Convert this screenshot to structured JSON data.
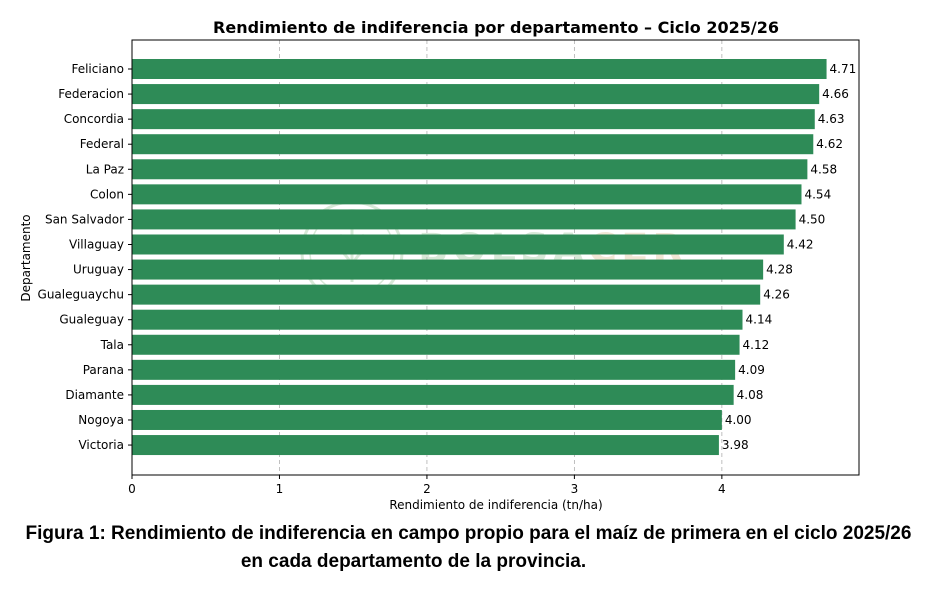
{
  "colors": {
    "bar": "#2e8b57",
    "watermark": "#8fbf8f",
    "watermark_accent": "#d9b98a"
  },
  "watermark": {
    "text_main": "BOLSA",
    "text_accent": "CER"
  },
  "caption": {
    "line1": "Figura 1: Rendimiento de indiferencia en campo propio para el maíz de primera en el ciclo 2025/26",
    "line2": "en cada departamento de la provincia."
  },
  "chart_data": {
    "type": "bar",
    "orientation": "horizontal",
    "title": "Rendimiento de indiferencia por departamento – Ciclo 2025/26",
    "xlabel": "Rendimiento de indiferencia (tn/ha)",
    "ylabel": "Departamento",
    "xlim": [
      0,
      4.93
    ],
    "xticks": [
      0,
      1,
      2,
      3,
      4
    ],
    "grid": "x-dashed",
    "categories": [
      "Feliciano",
      "Federacion",
      "Concordia",
      "Federal",
      "La Paz",
      "Colon",
      "San Salvador",
      "Villaguay",
      "Uruguay",
      "Gualeguaychu",
      "Gualeguay",
      "Tala",
      "Parana",
      "Diamante",
      "Nogoya",
      "Victoria"
    ],
    "values": [
      4.71,
      4.66,
      4.63,
      4.62,
      4.58,
      4.54,
      4.5,
      4.42,
      4.28,
      4.26,
      4.14,
      4.12,
      4.09,
      4.08,
      4.0,
      3.98
    ],
    "value_labels": [
      "4.71",
      "4.66",
      "4.63",
      "4.62",
      "4.58",
      "4.54",
      "4.50",
      "4.42",
      "4.28",
      "4.26",
      "4.14",
      "4.12",
      "4.09",
      "4.08",
      "4.00",
      "3.98"
    ]
  }
}
